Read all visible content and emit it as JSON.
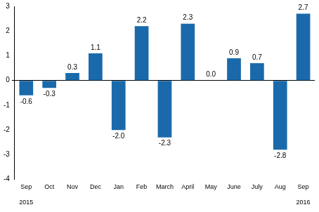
{
  "chart_data": {
    "type": "bar",
    "categories": [
      "Sep",
      "Oct",
      "Nov",
      "Dec",
      "Jan",
      "Feb",
      "March",
      "April",
      "May",
      "June",
      "July",
      "Aug",
      "Sep"
    ],
    "category_years": [
      "2015",
      null,
      null,
      null,
      null,
      null,
      null,
      null,
      null,
      null,
      null,
      null,
      "2016"
    ],
    "values": [
      -0.6,
      -0.3,
      0.3,
      1.1,
      -2.0,
      2.2,
      -2.3,
      2.3,
      0.0,
      0.9,
      0.7,
      -2.8,
      2.7
    ],
    "value_labels": [
      "-0.6",
      "-0.3",
      "0.3",
      "1.1",
      "-2.0",
      "2.2",
      "-2.3",
      "2.3",
      "0.0",
      "0.9",
      "0.7",
      "-2.8",
      "2.7"
    ],
    "color": "#1a6aab",
    "ylim": [
      -4,
      3
    ],
    "yticks": [
      -4,
      -3,
      -2,
      -1,
      0,
      1,
      2,
      3
    ],
    "grid": false,
    "data_labels": true
  }
}
